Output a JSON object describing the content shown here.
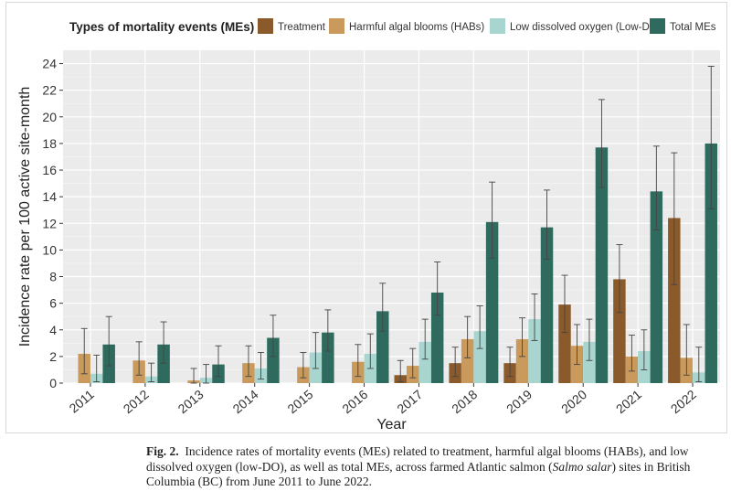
{
  "chart_data": {
    "type": "bar",
    "legend_title": "Types of mortality events (MEs)",
    "legend_position": "top",
    "xlabel": "Year",
    "ylabel": "Incidence rate per 100 active site-month",
    "ylim": [
      0,
      25
    ],
    "yticks": [
      0,
      2,
      4,
      6,
      8,
      10,
      12,
      14,
      16,
      18,
      20,
      22,
      24
    ],
    "categories": [
      "2011",
      "2012",
      "2013",
      "2014",
      "2015",
      "2016",
      "2017",
      "2018",
      "2019",
      "2020",
      "2021",
      "2022"
    ],
    "grid": true,
    "series": [
      {
        "name": "Treatment",
        "color": "#8B5A2B",
        "values": [
          0,
          0,
          0,
          0,
          0,
          0,
          0.6,
          1.5,
          1.5,
          5.9,
          7.8,
          12.4
        ],
        "ci_low": [
          null,
          null,
          null,
          null,
          null,
          null,
          0.1,
          0.5,
          0.5,
          3.8,
          5.3,
          7.4
        ],
        "ci_high": [
          null,
          null,
          null,
          null,
          null,
          null,
          1.7,
          2.7,
          2.7,
          8.1,
          10.4,
          17.3
        ]
      },
      {
        "name": "Harmful algal blooms (HABs)",
        "color": "#C99A5B",
        "values": [
          2.2,
          1.7,
          0.2,
          1.5,
          1.2,
          1.6,
          1.3,
          3.3,
          3.3,
          2.8,
          2.0,
          1.9
        ],
        "ci_low": [
          0.7,
          0.6,
          0.0,
          0.5,
          0.4,
          0.5,
          0.4,
          1.9,
          2.0,
          1.4,
          0.9,
          0.6
        ],
        "ci_high": [
          4.1,
          3.1,
          1.1,
          2.8,
          2.3,
          2.9,
          2.6,
          5.0,
          4.9,
          4.4,
          3.6,
          4.4
        ]
      },
      {
        "name": "Low dissolved oxygen (Low-DO)",
        "color": "#A8D5CF",
        "values": [
          0.7,
          0.5,
          0.4,
          1.1,
          2.3,
          2.2,
          3.1,
          3.9,
          4.8,
          3.1,
          2.4,
          0.8
        ],
        "ci_low": [
          0.1,
          0.1,
          0.0,
          0.3,
          1.1,
          1.1,
          1.8,
          2.6,
          3.2,
          1.7,
          1.0,
          0.1
        ],
        "ci_high": [
          2.1,
          1.5,
          1.4,
          2.3,
          3.8,
          3.7,
          4.8,
          5.8,
          6.7,
          4.8,
          4.0,
          2.7
        ]
      },
      {
        "name": "Total MEs",
        "color": "#2E6B5E",
        "values": [
          2.9,
          2.9,
          1.4,
          3.4,
          3.8,
          5.4,
          6.8,
          12.1,
          11.7,
          17.7,
          14.4,
          18.0
        ],
        "ci_low": [
          1.3,
          1.5,
          0.5,
          2.0,
          2.4,
          3.9,
          5.1,
          9.4,
          9.3,
          14.7,
          11.5,
          13.1
        ],
        "ci_high": [
          5.0,
          4.6,
          2.8,
          5.1,
          5.5,
          7.5,
          9.1,
          15.1,
          14.5,
          21.3,
          17.8,
          23.8
        ]
      }
    ]
  },
  "caption": {
    "label": "Fig. 2.",
    "text_before_italic": "Incidence rates of mortality events (MEs) related to treatment, harmful algal blooms (HABs), and low dissolved oxygen (low-DO), as well as total MEs, across farmed Atlantic salmon (",
    "italic": "Salmo salar",
    "text_after_italic": ") sites in British Columbia (BC) from June 2011 to June 2022."
  }
}
